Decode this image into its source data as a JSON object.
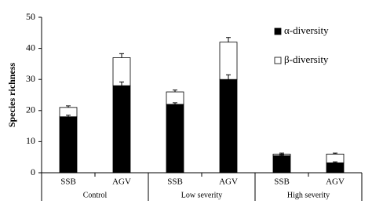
{
  "chart_data": {
    "type": "stacked-bar",
    "y_label": "Species richness",
    "categories": [
      "SSB",
      "AGV",
      "SSB",
      "AGV",
      "SSB",
      "AGV"
    ],
    "groups": [
      "Control",
      "Low severity",
      "High severity"
    ],
    "series": [
      {
        "name": "α-diversity",
        "color": "#000000",
        "values": [
          18,
          28,
          22,
          30,
          5.5,
          3.2
        ],
        "errors": [
          0.5,
          1.2,
          0.5,
          1.5,
          0.3,
          0.3
        ]
      },
      {
        "name": "β-diversity",
        "color": "#ffffff",
        "values": [
          3,
          9,
          4,
          12,
          0.5,
          2.8
        ],
        "errors": [
          0.5,
          1.3,
          0.6,
          1.5,
          0.3,
          0.3
        ]
      }
    ],
    "ylim": [
      0,
      50
    ],
    "yticks": [
      0,
      10,
      20,
      30,
      40,
      50
    ],
    "legend": "top-right"
  }
}
